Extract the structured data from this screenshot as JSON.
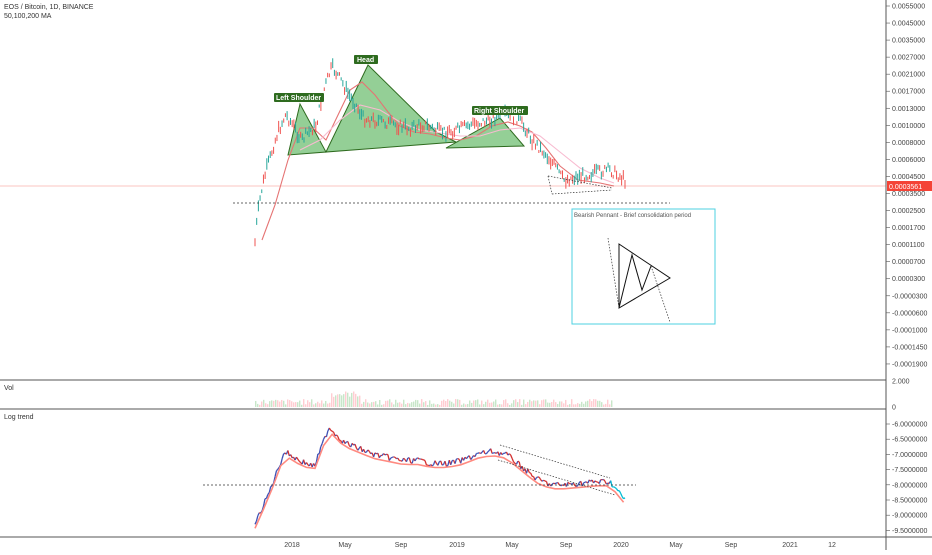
{
  "header": {
    "symbol_line": "EOS / Bitcoin, 1D, BINANCE",
    "ma_line": "50,100,200 MA"
  },
  "panes": {
    "volume_label": "Vol",
    "log_label": "Log trend"
  },
  "price_axis": {
    "ticks": [
      "0.0055000",
      "0.0045000",
      "0.0035000",
      "0.0027000",
      "0.0021000",
      "0.0017000",
      "0.0013000",
      "0.0010000",
      "0.0008000",
      "0.0006000",
      "0.0004500",
      "0.0003500",
      "0.0002500",
      "0.0001700",
      "0.0001100",
      "0.0000700",
      "0.0000300",
      "-0.0000300",
      "-0.0000600",
      "-0.0001000",
      "-0.0001450",
      "-0.0001900"
    ],
    "last_price": "0.0003561"
  },
  "volume_axis": {
    "ticks": [
      "2.000",
      "0"
    ]
  },
  "log_axis": {
    "ticks": [
      "-6.0000000",
      "-6.5000000",
      "-7.0000000",
      "-7.5000000",
      "-8.0000000",
      "-8.5000000",
      "-9.0000000",
      "-9.5000000"
    ]
  },
  "time_axis": {
    "labels": [
      "2018",
      "May",
      "Sep",
      "2019",
      "May",
      "Sep",
      "2020",
      "May",
      "Sep",
      "2021",
      "12"
    ]
  },
  "annotations": {
    "left_shoulder": "Left Shoulder",
    "head": "Head",
    "right_shoulder": "Right Shoulder",
    "pennant_note": "Bearish Pennant - Brief consolidation period"
  },
  "colors": {
    "up": "#26a69a",
    "down": "#ef5350",
    "pattern_fill": "#4caf50",
    "label_bg": "#2e6b1f",
    "ma_fast": "#e57373",
    "ma_slow": "#f8bbd0",
    "log_trend_up": "#3f51b5",
    "log_trend_down": "#d32f2f",
    "log_ma": "#ff8a80",
    "cyan": "#00bcd4",
    "last_price_line": "#f44336"
  },
  "chart_data": [
    {
      "type": "line",
      "title": "EOS / Bitcoin, 1D, BINANCE",
      "indicator": "50,100,200 MA",
      "x": [
        "2017-12",
        "2018-01",
        "2018-02",
        "2018-03",
        "2018-04",
        "2018-05",
        "2018-06",
        "2018-07",
        "2018-08",
        "2018-09",
        "2018-10",
        "2018-11",
        "2018-12",
        "2019-01",
        "2019-02",
        "2019-03",
        "2019-04",
        "2019-05",
        "2019-06",
        "2019-07",
        "2019-08",
        "2019-09",
        "2019-10",
        "2019-11",
        "2019-12"
      ],
      "series": [
        {
          "values": [
            0.0001,
            0.00045,
            0.00095,
            0.0006,
            0.0008,
            0.0022,
            0.0014,
            0.0009,
            0.00085,
            0.0008,
            0.00075,
            0.0008,
            0.0007,
            0.00072,
            0.0008,
            0.00085,
            0.00095,
            0.0009,
            0.0006,
            0.00045,
            0.0003,
            0.00032,
            0.00034,
            0.00036,
            0.0003
          ]
        }
      ],
      "last_value": 0.0003561
    },
    {
      "type": "line",
      "title": "Log trend",
      "x": [
        "2017-12",
        "2018-01",
        "2018-02",
        "2018-03",
        "2018-04",
        "2018-05",
        "2018-06",
        "2018-07",
        "2018-08",
        "2018-09",
        "2018-10",
        "2018-11",
        "2018-12",
        "2019-01",
        "2019-02",
        "2019-03",
        "2019-04",
        "2019-05",
        "2019-06",
        "2019-07",
        "2019-08",
        "2019-09",
        "2019-10",
        "2019-11",
        "2019-12",
        "2020-01"
      ],
      "series": [
        {
          "values": [
            -9.3,
            -8.2,
            -6.9,
            -7.2,
            -7.4,
            -6.1,
            -6.6,
            -6.8,
            -7.0,
            -7.1,
            -7.2,
            -7.2,
            -7.3,
            -7.3,
            -7.2,
            -7.0,
            -6.9,
            -7.0,
            -7.4,
            -7.8,
            -8.0,
            -8.0,
            -7.95,
            -7.9,
            -7.9,
            -8.5
          ]
        }
      ]
    }
  ]
}
